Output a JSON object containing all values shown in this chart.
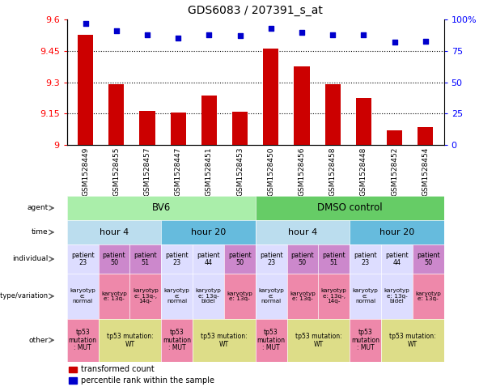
{
  "title": "GDS6083 / 207391_s_at",
  "samples": [
    "GSM1528449",
    "GSM1528455",
    "GSM1528457",
    "GSM1528447",
    "GSM1528451",
    "GSM1528453",
    "GSM1528450",
    "GSM1528456",
    "GSM1528458",
    "GSM1528448",
    "GSM1528452",
    "GSM1528454"
  ],
  "bar_values": [
    9.527,
    9.29,
    9.165,
    9.155,
    9.235,
    9.158,
    9.463,
    9.375,
    9.29,
    9.225,
    9.07,
    9.085
  ],
  "dot_values": [
    97,
    91,
    88,
    85,
    88,
    87,
    93,
    90,
    88,
    88,
    82,
    83
  ],
  "ylim_left": [
    9.0,
    9.6
  ],
  "ylim_right": [
    0,
    100
  ],
  "yticks_left": [
    9.0,
    9.15,
    9.3,
    9.45,
    9.6
  ],
  "yticks_right": [
    0,
    25,
    50,
    75,
    100
  ],
  "ytick_labels_left": [
    "9",
    "9.15",
    "9.3",
    "9.45",
    "9.6"
  ],
  "ytick_labels_right": [
    "0",
    "25",
    "50",
    "75",
    "100%"
  ],
  "hlines": [
    9.15,
    9.3,
    9.45
  ],
  "bar_color": "#cc0000",
  "dot_color": "#0000cc",
  "background_color": "#ffffff",
  "agent_row": {
    "label": "agent",
    "groups": [
      {
        "text": "BV6",
        "span": [
          0,
          6
        ],
        "color": "#aaeeaa"
      },
      {
        "text": "DMSO control",
        "span": [
          6,
          12
        ],
        "color": "#66cc66"
      }
    ]
  },
  "time_row": {
    "label": "time",
    "groups": [
      {
        "text": "hour 4",
        "span": [
          0,
          3
        ],
        "color": "#bbddee"
      },
      {
        "text": "hour 20",
        "span": [
          3,
          6
        ],
        "color": "#66bbdd"
      },
      {
        "text": "hour 4",
        "span": [
          6,
          9
        ],
        "color": "#bbddee"
      },
      {
        "text": "hour 20",
        "span": [
          9,
          12
        ],
        "color": "#66bbdd"
      }
    ]
  },
  "individual_row": {
    "label": "individual",
    "cells": [
      {
        "text": "patient\n23",
        "color": "#ddddff"
      },
      {
        "text": "patient\n50",
        "color": "#cc88cc"
      },
      {
        "text": "patient\n51",
        "color": "#cc88cc"
      },
      {
        "text": "patient\n23",
        "color": "#ddddff"
      },
      {
        "text": "patient\n44",
        "color": "#ddddff"
      },
      {
        "text": "patient\n50",
        "color": "#cc88cc"
      },
      {
        "text": "patient\n23",
        "color": "#ddddff"
      },
      {
        "text": "patient\n50",
        "color": "#cc88cc"
      },
      {
        "text": "patient\n51",
        "color": "#cc88cc"
      },
      {
        "text": "patient\n23",
        "color": "#ddddff"
      },
      {
        "text": "patient\n44",
        "color": "#ddddff"
      },
      {
        "text": "patient\n50",
        "color": "#cc88cc"
      }
    ]
  },
  "genotype_row": {
    "label": "genotype/variation",
    "cells": [
      {
        "text": "karyotyp\ne:\nnormal",
        "color": "#ddddff"
      },
      {
        "text": "karyotyp\ne: 13q-",
        "color": "#ee88aa"
      },
      {
        "text": "karyotyp\ne: 13q-,\n14q-",
        "color": "#ee88aa"
      },
      {
        "text": "karyotyp\ne:\nnormal",
        "color": "#ddddff"
      },
      {
        "text": "karyotyp\ne: 13q-\nbidel",
        "color": "#ddddff"
      },
      {
        "text": "karyotyp\ne: 13q-",
        "color": "#ee88aa"
      },
      {
        "text": "karyotyp\ne:\nnormal",
        "color": "#ddddff"
      },
      {
        "text": "karyotyp\ne: 13q-",
        "color": "#ee88aa"
      },
      {
        "text": "karyotyp\ne: 13q-,\n14q-",
        "color": "#ee88aa"
      },
      {
        "text": "karyotyp\ne:\nnormal",
        "color": "#ddddff"
      },
      {
        "text": "karyotyp\ne: 13q-\nbidel",
        "color": "#ddddff"
      },
      {
        "text": "karyotyp\ne: 13q-",
        "color": "#ee88aa"
      }
    ]
  },
  "other_row": {
    "label": "other",
    "groups": [
      {
        "text": "tp53\nmutation\n: MUT",
        "span": [
          0,
          1
        ],
        "color": "#ee88aa"
      },
      {
        "text": "tp53 mutation:\nWT",
        "span": [
          1,
          3
        ],
        "color": "#dddd88"
      },
      {
        "text": "tp53\nmutation\n: MUT",
        "span": [
          3,
          4
        ],
        "color": "#ee88aa"
      },
      {
        "text": "tp53 mutation:\nWT",
        "span": [
          4,
          6
        ],
        "color": "#dddd88"
      },
      {
        "text": "tp53\nmutation\n: MUT",
        "span": [
          6,
          7
        ],
        "color": "#ee88aa"
      },
      {
        "text": "tp53 mutation:\nWT",
        "span": [
          7,
          9
        ],
        "color": "#dddd88"
      },
      {
        "text": "tp53\nmutation\n: MUT",
        "span": [
          9,
          10
        ],
        "color": "#ee88aa"
      },
      {
        "text": "tp53 mutation:\nWT",
        "span": [
          10,
          12
        ],
        "color": "#dddd88"
      }
    ]
  },
  "legend": [
    {
      "label": "transformed count",
      "color": "#cc0000"
    },
    {
      "label": "percentile rank within the sample",
      "color": "#0000cc"
    }
  ],
  "label_arrow_color": "#888888"
}
